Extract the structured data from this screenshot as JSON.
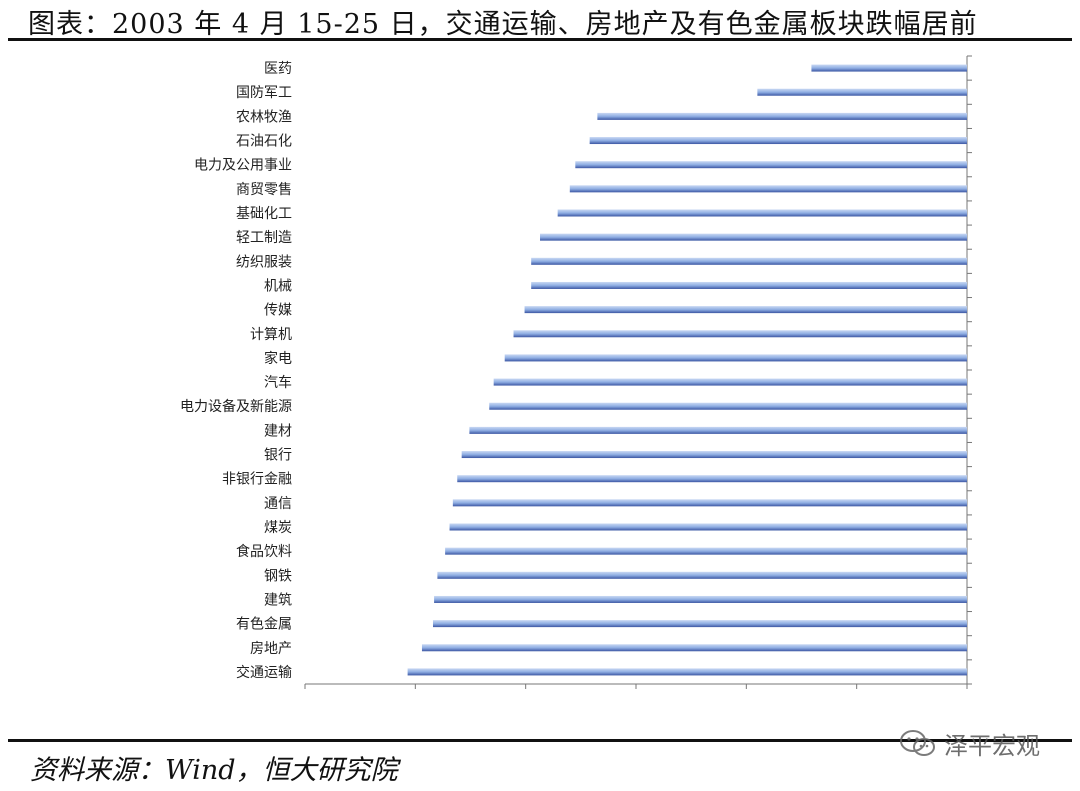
{
  "title": "图表：2003 年 4 月 15-25 日，交通运输、房地产及有色金属板块跌幅居前",
  "source": "资料来源：Wind，恒大研究院",
  "watermark": {
    "text": "泽平宏观",
    "icon": "wechat-icon"
  },
  "colors": {
    "bar": "#8faee3",
    "bar_edge": "#3b56a3",
    "axis": "#777777"
  },
  "chart_data": {
    "type": "bar",
    "orientation": "horizontal",
    "categories": [
      "医药",
      "国防军工",
      "农林牧渔",
      "石油石化",
      "电力及公用事业",
      "商贸零售",
      "基础化工",
      "轻工制造",
      "纺织服装",
      "机械",
      "传媒",
      "计算机",
      "家电",
      "汽车",
      "电力设备及新能源",
      "建材",
      "银行",
      "非银行金融",
      "通信",
      "煤炭",
      "食品饮料",
      "钢铁",
      "建筑",
      "有色金属",
      "房地产",
      "交通运输"
    ],
    "values": [
      -1.41,
      -1.9,
      -3.35,
      -3.42,
      -3.55,
      -3.6,
      -3.71,
      -3.87,
      -3.95,
      -3.95,
      -4.01,
      -4.11,
      -4.19,
      -4.29,
      -4.33,
      -4.51,
      -4.58,
      -4.62,
      -4.66,
      -4.69,
      -4.73,
      -4.8,
      -4.83,
      -4.84,
      -4.94,
      -5.07
    ],
    "xlim": [
      -6,
      0
    ],
    "xlabel": "",
    "ylabel": "",
    "tick_labels_shown": false,
    "grid": false,
    "legend": "none"
  }
}
